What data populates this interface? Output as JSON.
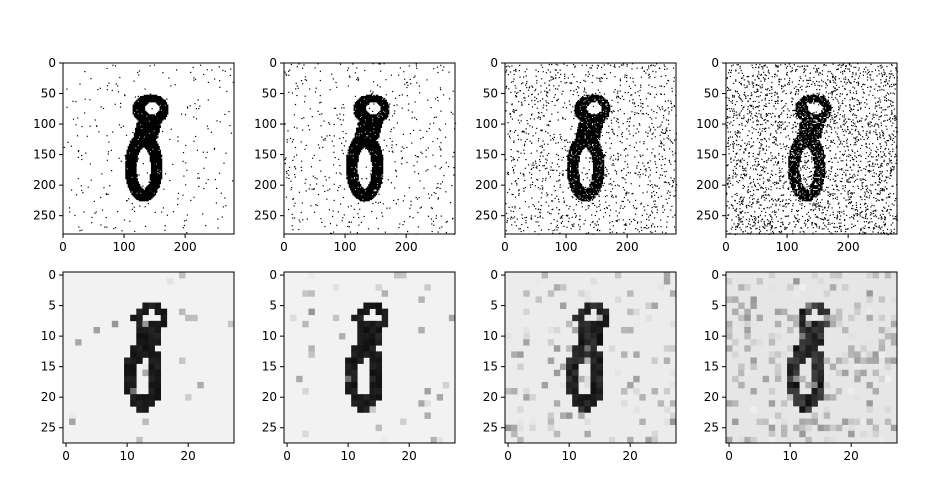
{
  "figure": {
    "rows": 2,
    "cols": 4
  },
  "chart_data": [
    {
      "type": "heatmap",
      "colormap": "gray",
      "background": "#ffffff",
      "ink": "#000000",
      "row": 0,
      "col": 0,
      "resolution": 280,
      "noise_level": 0.03,
      "blocky": false,
      "xlim": [
        0,
        280
      ],
      "ylim": [
        280,
        0
      ],
      "xticks": [
        0,
        100,
        200
      ],
      "yticks": [
        0,
        50,
        100,
        150,
        200,
        250
      ],
      "xtick_labels": [
        "0",
        "100",
        "200"
      ],
      "ytick_labels": [
        "0",
        "50",
        "100",
        "150",
        "200",
        "250"
      ]
    },
    {
      "type": "heatmap",
      "colormap": "gray",
      "background": "#ffffff",
      "ink": "#000000",
      "row": 0,
      "col": 1,
      "resolution": 280,
      "noise_level": 0.06,
      "blocky": false,
      "xlim": [
        0,
        280
      ],
      "ylim": [
        280,
        0
      ],
      "xticks": [
        0,
        100,
        200
      ],
      "yticks": [
        0,
        50,
        100,
        150,
        200,
        250
      ],
      "xtick_labels": [
        "0",
        "100",
        "200"
      ],
      "ytick_labels": [
        "0",
        "50",
        "100",
        "150",
        "200",
        "250"
      ]
    },
    {
      "type": "heatmap",
      "colormap": "gray",
      "background": "#ffffff",
      "ink": "#000000",
      "row": 0,
      "col": 2,
      "resolution": 280,
      "noise_level": 0.15,
      "blocky": false,
      "xlim": [
        0,
        280
      ],
      "ylim": [
        280,
        0
      ],
      "xticks": [
        0,
        100,
        200
      ],
      "yticks": [
        0,
        50,
        100,
        150,
        200,
        250
      ],
      "xtick_labels": [
        "0",
        "100",
        "200"
      ],
      "ytick_labels": [
        "0",
        "50",
        "100",
        "150",
        "200",
        "250"
      ]
    },
    {
      "type": "heatmap",
      "colormap": "gray",
      "background": "#ffffff",
      "ink": "#000000",
      "row": 0,
      "col": 3,
      "resolution": 280,
      "noise_level": 0.3,
      "blocky": false,
      "xlim": [
        0,
        280
      ],
      "ylim": [
        280,
        0
      ],
      "xticks": [
        0,
        100,
        200
      ],
      "yticks": [
        0,
        50,
        100,
        150,
        200,
        250
      ],
      "xtick_labels": [
        "0",
        "100",
        "200"
      ],
      "ytick_labels": [
        "0",
        "50",
        "100",
        "150",
        "200",
        "250"
      ]
    },
    {
      "type": "heatmap",
      "colormap": "gray",
      "background": "#f2f2f2",
      "ink": "#111111",
      "row": 1,
      "col": 0,
      "resolution": 28,
      "noise_level": 0.05,
      "blocky": true,
      "xlim": [
        0,
        28
      ],
      "ylim": [
        28,
        0
      ],
      "xticks": [
        0,
        10,
        20
      ],
      "yticks": [
        0,
        5,
        10,
        15,
        20,
        25
      ],
      "xtick_labels": [
        "0",
        "10",
        "20"
      ],
      "ytick_labels": [
        "0",
        "5",
        "10",
        "15",
        "20",
        "25"
      ]
    },
    {
      "type": "heatmap",
      "colormap": "gray",
      "background": "#f2f2f2",
      "ink": "#111111",
      "row": 1,
      "col": 1,
      "resolution": 28,
      "noise_level": 0.1,
      "blocky": true,
      "xlim": [
        0,
        28
      ],
      "ylim": [
        28,
        0
      ],
      "xticks": [
        0,
        10,
        20
      ],
      "yticks": [
        0,
        5,
        10,
        15,
        20,
        25
      ],
      "xtick_labels": [
        "0",
        "10",
        "20"
      ],
      "ytick_labels": [
        "0",
        "5",
        "10",
        "15",
        "20",
        "25"
      ]
    },
    {
      "type": "heatmap",
      "colormap": "gray",
      "background": "#ececec",
      "ink": "#111111",
      "row": 1,
      "col": 2,
      "resolution": 28,
      "noise_level": 0.35,
      "blocky": true,
      "xlim": [
        0,
        28
      ],
      "ylim": [
        28,
        0
      ],
      "xticks": [
        0,
        10,
        20
      ],
      "yticks": [
        0,
        5,
        10,
        15,
        20,
        25
      ],
      "xtick_labels": [
        "0",
        "10",
        "20"
      ],
      "ytick_labels": [
        "0",
        "5",
        "10",
        "15",
        "20",
        "25"
      ]
    },
    {
      "type": "heatmap",
      "colormap": "gray",
      "background": "#e6e6e6",
      "ink": "#222222",
      "row": 1,
      "col": 3,
      "resolution": 28,
      "noise_level": 0.6,
      "blocky": true,
      "xlim": [
        0,
        28
      ],
      "ylim": [
        28,
        0
      ],
      "xticks": [
        0,
        10,
        20
      ],
      "yticks": [
        0,
        5,
        10,
        15,
        20,
        25
      ],
      "xtick_labels": [
        "0",
        "10",
        "20"
      ],
      "ytick_labels": [
        "0",
        "5",
        "10",
        "15",
        "20",
        "25"
      ]
    }
  ]
}
